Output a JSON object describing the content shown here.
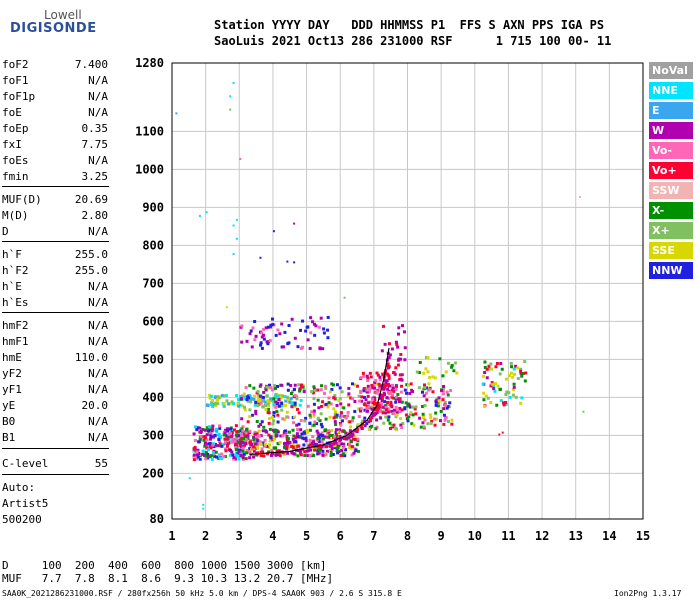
{
  "logo": {
    "top": "Lowell",
    "bottom": "DIGISONDE"
  },
  "header": {
    "line1": "Station YYYY DAY   DDD HHMMSS P1  FFS S AXN PPS IGA PS",
    "line2": "SaoLuis 2021 Oct13 286 231000 RSF      1 715 100 00- 11"
  },
  "scaled_params": [
    {
      "k": "foF2",
      "v": "7.400"
    },
    {
      "k": "foF1",
      "v": "N/A"
    },
    {
      "k": "foF1p",
      "v": "N/A"
    },
    {
      "k": "foE",
      "v": "N/A"
    },
    {
      "k": "foEp",
      "v": "0.35"
    },
    {
      "k": "fxI",
      "v": "7.75"
    },
    {
      "k": "foEs",
      "v": "N/A"
    },
    {
      "k": "fmin",
      "v": "3.25"
    },
    {
      "k": "MUF(D)",
      "v": "20.69"
    },
    {
      "k": "M(D)",
      "v": "2.80"
    },
    {
      "k": "D",
      "v": "N/A"
    },
    {
      "k": "h`F",
      "v": "255.0"
    },
    {
      "k": "h`F2",
      "v": "255.0"
    },
    {
      "k": "h`E",
      "v": "N/A"
    },
    {
      "k": "h`Es",
      "v": "N/A"
    },
    {
      "k": "hmF2",
      "v": "N/A"
    },
    {
      "k": "hmF1",
      "v": "N/A"
    },
    {
      "k": "hmE",
      "v": "110.0"
    },
    {
      "k": "yF2",
      "v": "N/A"
    },
    {
      "k": "yF1",
      "v": "N/A"
    },
    {
      "k": "yE",
      "v": "20.0"
    },
    {
      "k": "B0",
      "v": "N/A"
    },
    {
      "k": "B1",
      "v": "N/A"
    },
    {
      "k": "C-level",
      "v": "55"
    }
  ],
  "auto_block": {
    "line1": "Auto:",
    "line2": "Artist5",
    "line3": "500200"
  },
  "legend": [
    {
      "label": "NoVal",
      "color": "#a0a0a0"
    },
    {
      "label": "NNE",
      "color": "#00e5ff"
    },
    {
      "label": "E",
      "color": "#3aa6f0"
    },
    {
      "label": "W",
      "color": "#b000b0"
    },
    {
      "label": "Vo-",
      "color": "#ff66b8"
    },
    {
      "label": "Vo+",
      "color": "#ff0033"
    },
    {
      "label": "SSW",
      "color": "#f3b3b3"
    },
    {
      "label": "X-",
      "color": "#009000"
    },
    {
      "label": "X+",
      "color": "#80c060"
    },
    {
      "label": "SSE",
      "color": "#d8d800"
    },
    {
      "label": "NNW",
      "color": "#2020e0"
    }
  ],
  "footer": {
    "d_row": "D     100  200  400  600  800 1000 1500 3000 [km]",
    "muf_row": "MUF   7.7  7.8  8.1  8.6  9.3 10.3 13.2 20.7 [MHz]",
    "file_info": "SAA0K_2021286231000.RSF / 280fx256h 50 kHz 5.0 km / DPS-4 SAA0K 903 / 2.6 S 315.8 E",
    "version": "Ion2Png 1.3.17"
  },
  "chart_data": {
    "type": "scatter",
    "xlim": [
      1,
      15
    ],
    "ylim": [
      80,
      1280
    ],
    "x_ticks": [
      "1",
      "2",
      "3",
      "4",
      "5",
      "6",
      "7",
      "8",
      "9",
      "10",
      "11",
      "12",
      "13",
      "14",
      "15"
    ],
    "y_ticks": [
      {
        "value": 80,
        "label": "80"
      },
      {
        "value": 200,
        "label": "200"
      },
      {
        "value": 300,
        "label": "300"
      },
      {
        "value": 400,
        "label": "400"
      },
      {
        "value": 500,
        "label": "500"
      },
      {
        "value": 600,
        "label": "600"
      },
      {
        "value": 700,
        "label": "700"
      },
      {
        "value": 800,
        "label": "800"
      },
      {
        "value": 900,
        "label": "900"
      },
      {
        "value": 1000,
        "label": "1000"
      },
      {
        "value": 1100,
        "label": "1100"
      },
      {
        "value": 1280,
        "label": "1280"
      }
    ],
    "grid": true,
    "trace_line": [
      [
        3.3,
        250
      ],
      [
        4.5,
        258
      ],
      [
        5.5,
        275
      ],
      [
        6.2,
        300
      ],
      [
        6.8,
        340
      ],
      [
        7.1,
        380
      ],
      [
        7.3,
        450
      ],
      [
        7.45,
        530
      ]
    ],
    "clusters": [
      {
        "x": [
          1.6,
          3.2
        ],
        "y": [
          240,
          330
        ],
        "colors": [
          "#2020e0",
          "#b000b0",
          "#ff0033",
          "#00e5ff",
          "#009000",
          "#ff66b8"
        ],
        "n": 260
      },
      {
        "x": [
          3.0,
          6.5
        ],
        "y": [
          250,
          320
        ],
        "colors": [
          "#ff0033",
          "#b000b0",
          "#ff66b8",
          "#2020e0",
          "#009000",
          "#d8d800"
        ],
        "n": 380
      },
      {
        "x": [
          2.0,
          4.8
        ],
        "y": [
          380,
          410
        ],
        "colors": [
          "#00e5ff",
          "#3aa6f0",
          "#80c060",
          "#d8d800"
        ],
        "n": 120
      },
      {
        "x": [
          3.0,
          9.3
        ],
        "y": [
          320,
          440
        ],
        "colors": [
          "#009000",
          "#d8d800",
          "#80c060",
          "#ff0033",
          "#b000b0",
          "#ff66b8",
          "#2020e0"
        ],
        "n": 420
      },
      {
        "x": [
          6.5,
          7.8
        ],
        "y": [
          360,
          470
        ],
        "colors": [
          "#ff0033",
          "#ff66b8",
          "#b000b0"
        ],
        "n": 120
      },
      {
        "x": [
          7.2,
          7.9
        ],
        "y": [
          460,
          600
        ],
        "colors": [
          "#ff0033",
          "#b000b0"
        ],
        "n": 25
      },
      {
        "x": [
          3.0,
          5.6
        ],
        "y": [
          530,
          620
        ],
        "colors": [
          "#b000b0",
          "#ff66b8",
          "#2020e0"
        ],
        "n": 70
      },
      {
        "x": [
          10.2,
          11.5
        ],
        "y": [
          380,
          500
        ],
        "colors": [
          "#009000",
          "#80c060",
          "#d8d800",
          "#ff0033",
          "#b000b0",
          "#00e5ff"
        ],
        "n": 70
      },
      {
        "x": [
          8.2,
          9.5
        ],
        "y": [
          450,
          510
        ],
        "colors": [
          "#009000",
          "#d8d800",
          "#80c060"
        ],
        "n": 20
      }
    ],
    "scatter_points": [
      {
        "x": 2.8,
        "y": 1230,
        "c": "#00e5ff"
      },
      {
        "x": 2.7,
        "y": 1195,
        "c": "#00e5ff"
      },
      {
        "x": 2.7,
        "y": 1160,
        "c": "#80c060"
      },
      {
        "x": 1.8,
        "y": 880,
        "c": "#00e5ff"
      },
      {
        "x": 2.0,
        "y": 890,
        "c": "#00e5ff"
      },
      {
        "x": 2.9,
        "y": 870,
        "c": "#00e5ff"
      },
      {
        "x": 2.8,
        "y": 855,
        "c": "#00e5ff"
      },
      {
        "x": 2.9,
        "y": 820,
        "c": "#00e5ff"
      },
      {
        "x": 2.8,
        "y": 780,
        "c": "#00e5ff"
      },
      {
        "x": 4.0,
        "y": 840,
        "c": "#2020e0"
      },
      {
        "x": 4.6,
        "y": 860,
        "c": "#b000b0"
      },
      {
        "x": 3.6,
        "y": 770,
        "c": "#2020e0"
      },
      {
        "x": 4.4,
        "y": 760,
        "c": "#2020e0"
      },
      {
        "x": 4.6,
        "y": 758,
        "c": "#2020e0"
      },
      {
        "x": 3.0,
        "y": 1030,
        "c": "#ff66b8"
      },
      {
        "x": 1.9,
        "y": 120,
        "c": "#00e5ff"
      },
      {
        "x": 1.9,
        "y": 110,
        "c": "#00e5ff"
      },
      {
        "x": 1.5,
        "y": 190,
        "c": "#00e5ff"
      },
      {
        "x": 13.1,
        "y": 930,
        "c": "#f3b3b3"
      },
      {
        "x": 13.2,
        "y": 365,
        "c": "#80c060"
      },
      {
        "x": 6.1,
        "y": 665,
        "c": "#80c060"
      },
      {
        "x": 1.1,
        "y": 1150,
        "c": "#3aa6f0"
      },
      {
        "x": 10.8,
        "y": 310,
        "c": "#ff0033"
      },
      {
        "x": 10.7,
        "y": 305,
        "c": "#ff0033"
      },
      {
        "x": 2.6,
        "y": 640,
        "c": "#d8d800"
      }
    ]
  }
}
